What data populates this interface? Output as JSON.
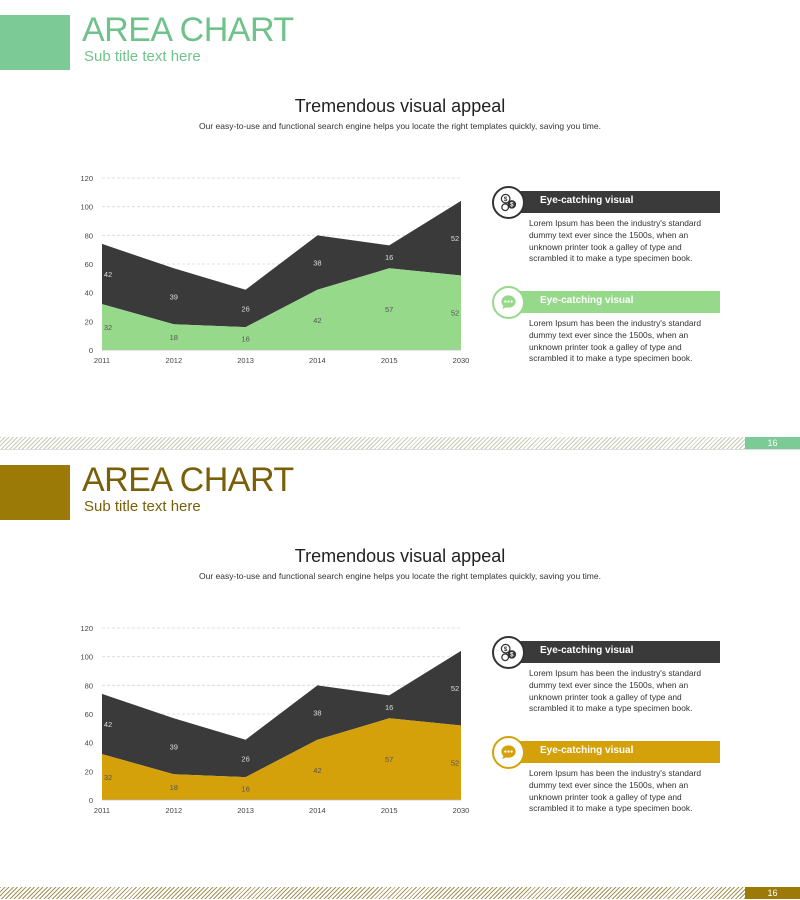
{
  "slides": [
    {
      "title_bold": "AREA",
      "title_rest": " CHART",
      "subtitle": "Sub title text here",
      "headline": "Tremendous visual appeal",
      "description": "Our easy-to-use and functional search engine helps you locate the right templates quickly, saving you time.",
      "accent": "#7ccb96",
      "top_series_color": "#3a3a3a",
      "bottom_series_color": "#96d98b",
      "cards": [
        {
          "title": "Eye-catching visual",
          "icon": "coins-icon",
          "bar_color": "#3a3a3a",
          "ring_color": "#333333",
          "body": "Lorem Ipsum has been the industry's standard dummy text ever since the 1500s, when an unknown printer took a galley of type and scrambled it to make a type specimen book."
        },
        {
          "title": "Eye-catching visual",
          "icon": "chat-bubble-icon",
          "bar_color": "#96d98b",
          "ring_color": "#96d98b",
          "body": "Lorem Ipsum has been the industry's standard dummy text ever since the 1500s, when an unknown printer took a galley of type and scrambled it to make a type specimen book."
        }
      ],
      "page_number": "16"
    },
    {
      "title_bold": "AREA",
      "title_rest": " CHART",
      "subtitle": "Sub title text here",
      "headline": "Tremendous visual appeal",
      "description": "Our easy-to-use and functional search engine helps you locate the right templates quickly, saving you time.",
      "accent": "#9c7a08",
      "top_series_color": "#3a3a3a",
      "bottom_series_color": "#d4a10a",
      "cards": [
        {
          "title": "Eye-catching visual",
          "icon": "coins-icon",
          "bar_color": "#3a3a3a",
          "ring_color": "#333333",
          "body": "Lorem Ipsum has been the industry's standard dummy text ever since the 1500s, when an unknown printer took a galley of type and scrambled it to make a type specimen book."
        },
        {
          "title": "Eye-catching visual",
          "icon": "chat-bubble-icon",
          "bar_color": "#d4a10a",
          "ring_color": "#d4a10a",
          "body": "Lorem Ipsum has been the industry's standard dummy text ever since the 1500s, when an unknown printer took a galley of type and scrambled it to make a type specimen book."
        }
      ],
      "page_number": "16"
    }
  ],
  "chart_data": [
    {
      "type": "area",
      "stacked": true,
      "categories": [
        "2011",
        "2012",
        "2013",
        "2014",
        "2015",
        "2030"
      ],
      "series": [
        {
          "values": [
            32,
            18,
            16,
            42,
            57,
            52
          ]
        },
        {
          "values": [
            42,
            39,
            26,
            38,
            16,
            52
          ]
        }
      ],
      "ylim": [
        0,
        120
      ],
      "yticks": [
        0,
        20,
        40,
        60,
        80,
        100,
        120
      ],
      "grid": true
    },
    {
      "type": "area",
      "stacked": true,
      "categories": [
        "2011",
        "2012",
        "2013",
        "2014",
        "2015",
        "2030"
      ],
      "series": [
        {
          "values": [
            32,
            18,
            16,
            42,
            57,
            52
          ]
        },
        {
          "values": [
            42,
            39,
            26,
            38,
            16,
            52
          ]
        }
      ],
      "ylim": [
        0,
        120
      ],
      "yticks": [
        0,
        20,
        40,
        60,
        80,
        100,
        120
      ],
      "grid": true
    }
  ]
}
